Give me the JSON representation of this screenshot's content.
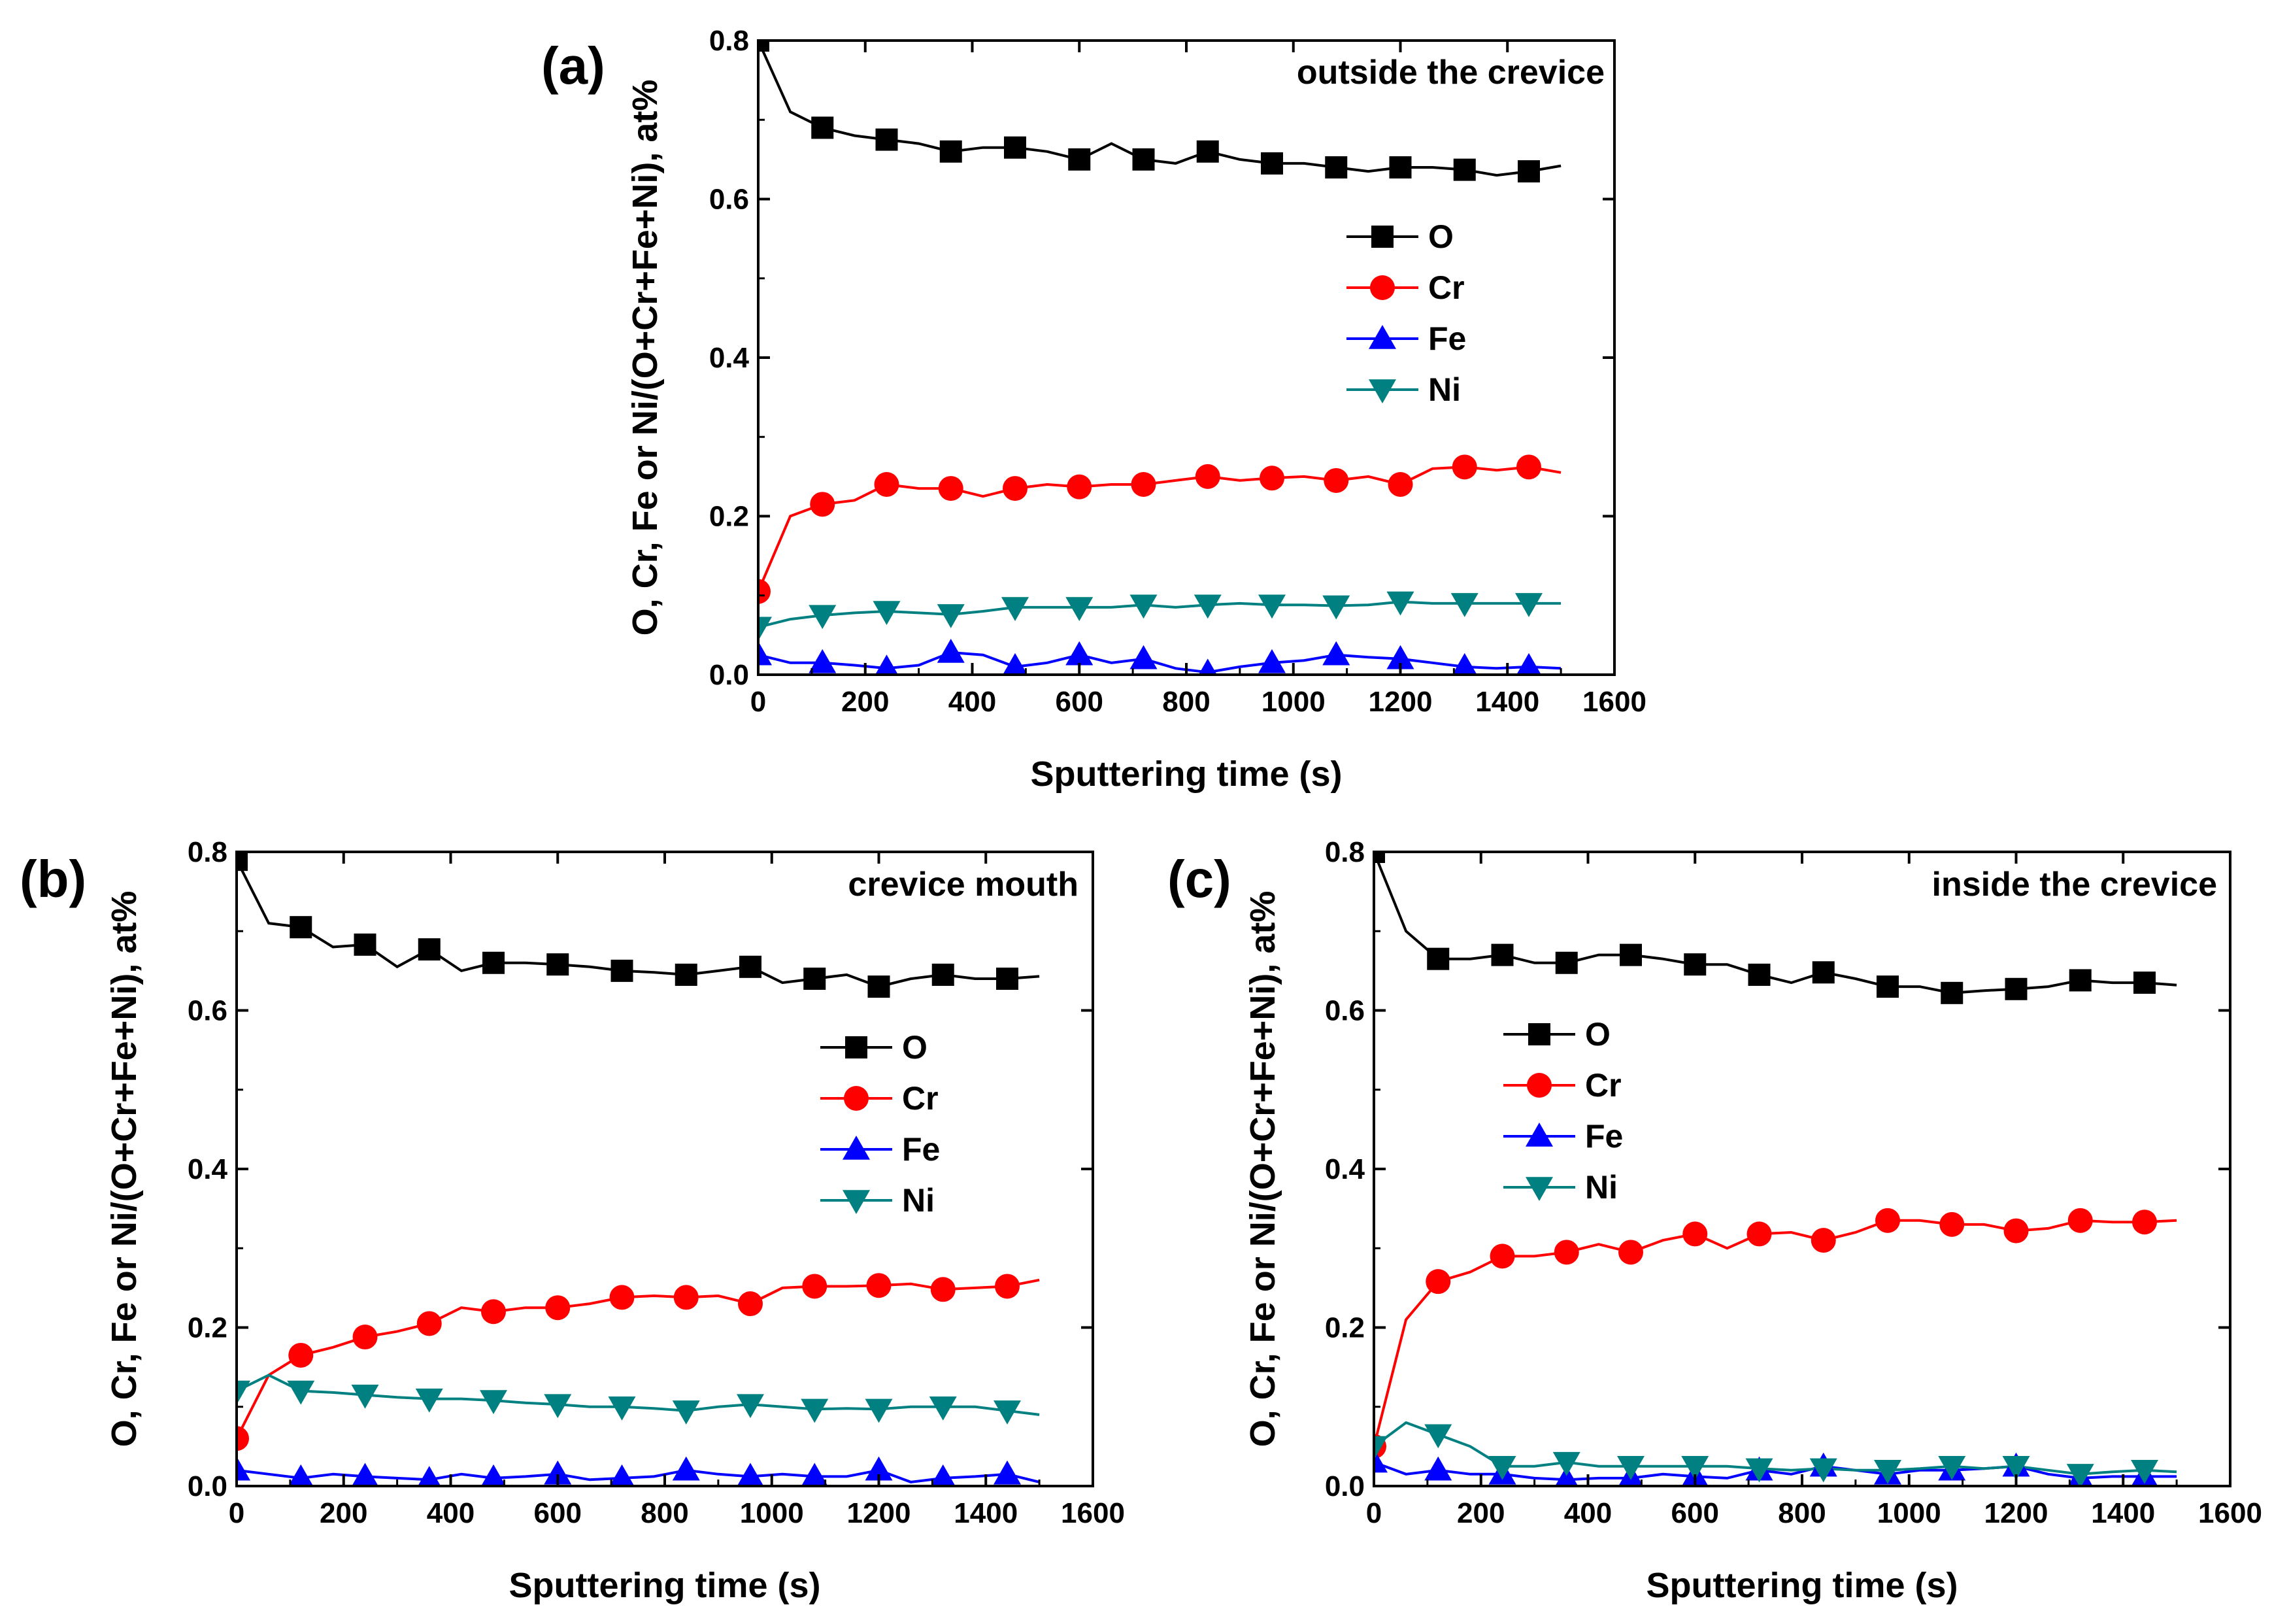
{
  "chart_data": [
    {
      "type": "line",
      "panel_label": "(a)",
      "annotation": "outside the crevice",
      "xlabel": "Sputtering time (s)",
      "ylabel": "O, Cr, Fe or Ni/(O+Cr+Fe+Ni), at%",
      "xlim": [
        0,
        1600
      ],
      "ylim": [
        0,
        0.8
      ],
      "x_ticks": [
        "0",
        "200",
        "400",
        "600",
        "800",
        "1000",
        "1200",
        "1400",
        "1600"
      ],
      "y_ticks": [
        "0.0",
        "0.2",
        "0.4",
        "0.6",
        "0.8"
      ],
      "legend": [
        "O",
        "Cr",
        "Fe",
        "Ni"
      ],
      "legend_position": "upper-right",
      "colors": {
        "O": "#000000",
        "Cr": "#ff0000",
        "Fe": "#0000ff",
        "Ni": "#008080"
      },
      "markers": {
        "O": "square",
        "Cr": "circle",
        "Fe": "triangle-up",
        "Ni": "triangle-down"
      },
      "x": [
        0,
        60,
        120,
        180,
        240,
        300,
        360,
        420,
        480,
        540,
        600,
        660,
        720,
        780,
        840,
        900,
        960,
        1020,
        1080,
        1140,
        1200,
        1260,
        1320,
        1380,
        1440,
        1500
      ],
      "series": [
        {
          "name": "O",
          "values": [
            0.8,
            0.71,
            0.69,
            0.68,
            0.675,
            0.67,
            0.66,
            0.665,
            0.665,
            0.66,
            0.65,
            0.67,
            0.65,
            0.645,
            0.66,
            0.65,
            0.645,
            0.645,
            0.64,
            0.635,
            0.64,
            0.64,
            0.637,
            0.63,
            0.635,
            0.642
          ]
        },
        {
          "name": "Cr",
          "values": [
            0.105,
            0.2,
            0.215,
            0.22,
            0.24,
            0.235,
            0.235,
            0.225,
            0.235,
            0.24,
            0.237,
            0.24,
            0.24,
            0.245,
            0.25,
            0.245,
            0.248,
            0.25,
            0.245,
            0.25,
            0.24,
            0.26,
            0.262,
            0.258,
            0.262,
            0.255
          ]
        },
        {
          "name": "Fe",
          "values": [
            0.025,
            0.015,
            0.015,
            0.012,
            0.008,
            0.012,
            0.028,
            0.025,
            0.01,
            0.015,
            0.025,
            0.015,
            0.02,
            0.008,
            0.003,
            0.01,
            0.015,
            0.018,
            0.025,
            0.022,
            0.02,
            0.015,
            0.01,
            0.008,
            0.01,
            0.008
          ]
        },
        {
          "name": "Ni",
          "values": [
            0.06,
            0.07,
            0.075,
            0.078,
            0.08,
            0.078,
            0.076,
            0.08,
            0.085,
            0.085,
            0.085,
            0.085,
            0.088,
            0.085,
            0.088,
            0.09,
            0.088,
            0.088,
            0.087,
            0.088,
            0.092,
            0.09,
            0.09,
            0.09,
            0.09,
            0.09
          ]
        }
      ]
    },
    {
      "type": "line",
      "panel_label": "(b)",
      "annotation": "crevice mouth",
      "xlabel": "Sputtering time (s)",
      "ylabel": "O, Cr, Fe or Ni/(O+Cr+Fe+Ni), at%",
      "xlim": [
        0,
        1600
      ],
      "ylim": [
        0,
        0.8
      ],
      "x_ticks": [
        "0",
        "200",
        "400",
        "600",
        "800",
        "1000",
        "1200",
        "1400",
        "1600"
      ],
      "y_ticks": [
        "0.0",
        "0.2",
        "0.4",
        "0.6",
        "0.8"
      ],
      "legend": [
        "O",
        "Cr",
        "Fe",
        "Ni"
      ],
      "legend_position": "center-right",
      "colors": {
        "O": "#000000",
        "Cr": "#ff0000",
        "Fe": "#0000ff",
        "Ni": "#008080"
      },
      "markers": {
        "O": "square",
        "Cr": "circle",
        "Fe": "triangle-up",
        "Ni": "triangle-down"
      },
      "x": [
        0,
        60,
        120,
        180,
        240,
        300,
        360,
        420,
        480,
        540,
        600,
        660,
        720,
        780,
        840,
        900,
        960,
        1020,
        1080,
        1140,
        1200,
        1260,
        1320,
        1380,
        1440,
        1500
      ],
      "series": [
        {
          "name": "O",
          "values": [
            0.79,
            0.71,
            0.705,
            0.68,
            0.683,
            0.655,
            0.677,
            0.65,
            0.66,
            0.66,
            0.658,
            0.655,
            0.65,
            0.648,
            0.645,
            0.65,
            0.655,
            0.635,
            0.64,
            0.645,
            0.63,
            0.64,
            0.645,
            0.64,
            0.64,
            0.643
          ]
        },
        {
          "name": "Cr",
          "values": [
            0.06,
            0.14,
            0.165,
            0.175,
            0.188,
            0.195,
            0.205,
            0.225,
            0.22,
            0.225,
            0.225,
            0.23,
            0.238,
            0.24,
            0.238,
            0.24,
            0.23,
            0.25,
            0.252,
            0.252,
            0.253,
            0.255,
            0.248,
            0.25,
            0.252,
            0.26
          ]
        },
        {
          "name": "Fe",
          "values": [
            0.02,
            0.015,
            0.01,
            0.015,
            0.012,
            0.01,
            0.008,
            0.015,
            0.01,
            0.012,
            0.015,
            0.008,
            0.01,
            0.012,
            0.02,
            0.015,
            0.012,
            0.015,
            0.012,
            0.012,
            0.02,
            0.005,
            0.01,
            0.012,
            0.015,
            0.005
          ]
        },
        {
          "name": "Ni",
          "values": [
            0.12,
            0.14,
            0.12,
            0.118,
            0.115,
            0.112,
            0.11,
            0.11,
            0.108,
            0.105,
            0.103,
            0.1,
            0.1,
            0.098,
            0.095,
            0.1,
            0.103,
            0.1,
            0.097,
            0.098,
            0.097,
            0.1,
            0.1,
            0.1,
            0.095,
            0.09
          ]
        }
      ]
    },
    {
      "type": "line",
      "panel_label": "(c)",
      "annotation": "inside the crevice",
      "xlabel": "Sputtering time (s)",
      "ylabel": "O, Cr, Fe or Ni/(O+Cr+Fe+Ni), at%",
      "xlim": [
        0,
        1600
      ],
      "ylim": [
        0,
        0.8
      ],
      "x_ticks": [
        "0",
        "200",
        "400",
        "600",
        "800",
        "1000",
        "1200",
        "1400",
        "1600"
      ],
      "y_ticks": [
        "0.0",
        "0.2",
        "0.4",
        "0.6",
        "0.8"
      ],
      "legend": [
        "O",
        "Cr",
        "Fe",
        "Ni"
      ],
      "legend_position": "upper-left",
      "colors": {
        "O": "#000000",
        "Cr": "#ff0000",
        "Fe": "#0000ff",
        "Ni": "#008080"
      },
      "markers": {
        "O": "square",
        "Cr": "circle",
        "Fe": "triangle-up",
        "Ni": "triangle-down"
      },
      "x": [
        0,
        60,
        120,
        180,
        240,
        300,
        360,
        420,
        480,
        540,
        600,
        660,
        720,
        780,
        840,
        900,
        960,
        1020,
        1080,
        1140,
        1200,
        1260,
        1320,
        1380,
        1440,
        1500
      ],
      "series": [
        {
          "name": "O",
          "values": [
            0.8,
            0.7,
            0.665,
            0.665,
            0.67,
            0.66,
            0.66,
            0.67,
            0.67,
            0.665,
            0.658,
            0.658,
            0.645,
            0.635,
            0.648,
            0.64,
            0.63,
            0.63,
            0.622,
            0.625,
            0.627,
            0.63,
            0.638,
            0.635,
            0.635,
            0.632
          ]
        },
        {
          "name": "Cr",
          "values": [
            0.05,
            0.21,
            0.258,
            0.27,
            0.29,
            0.29,
            0.295,
            0.305,
            0.295,
            0.31,
            0.318,
            0.3,
            0.318,
            0.32,
            0.31,
            0.32,
            0.335,
            0.335,
            0.33,
            0.33,
            0.322,
            0.325,
            0.335,
            0.333,
            0.333,
            0.335
          ]
        },
        {
          "name": "Fe",
          "values": [
            0.03,
            0.015,
            0.02,
            0.015,
            0.015,
            0.01,
            0.008,
            0.01,
            0.01,
            0.015,
            0.012,
            0.01,
            0.02,
            0.015,
            0.025,
            0.02,
            0.015,
            0.02,
            0.02,
            0.022,
            0.025,
            0.015,
            0.01,
            0.012,
            0.012,
            0.012
          ]
        },
        {
          "name": "Ni",
          "values": [
            0.05,
            0.08,
            0.065,
            0.05,
            0.025,
            0.025,
            0.03,
            0.025,
            0.025,
            0.025,
            0.025,
            0.025,
            0.022,
            0.02,
            0.022,
            0.02,
            0.02,
            0.022,
            0.025,
            0.022,
            0.025,
            0.02,
            0.015,
            0.018,
            0.02,
            0.018
          ]
        }
      ]
    }
  ]
}
